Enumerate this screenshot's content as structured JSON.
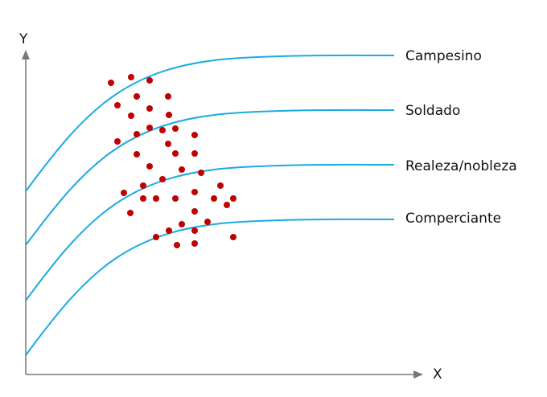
{
  "axes": {
    "x_label": "X",
    "y_label": "Y",
    "color": "#777777"
  },
  "curves": [
    {
      "label": "Campesino"
    },
    {
      "label": "Soldado"
    },
    {
      "label": "Realeza/nobleza"
    },
    {
      "label": "Comperciante"
    }
  ],
  "colors": {
    "curve": "#1aabe0",
    "dot": "#c00000"
  }
}
